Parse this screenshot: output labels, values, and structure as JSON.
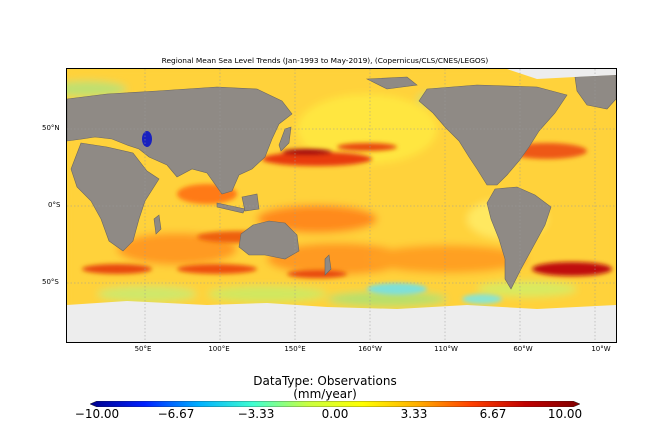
{
  "map": {
    "title": "Regional Mean Sea Level Trends (Jan-1993 to May-2019), (Copernicus/CLS/CNES/LEGOS)",
    "lat_labels": [
      "50°N",
      "0°S",
      "50°S"
    ],
    "lon_labels": [
      "50°E",
      "100°E",
      "150°E",
      "160°W",
      "110°W",
      "60°W",
      "10°W"
    ],
    "colors": {
      "land": "#8f8a85",
      "ice": "#ededed",
      "ocean_base": "#ffd23a",
      "high_trend": "#e83a10",
      "very_high_trend": "#b01010",
      "low_trend": "#7ee0d8"
    }
  },
  "colorbar": {
    "title": "DataType: Observations",
    "unit": "(mm/year)",
    "ticks": [
      "−10.00",
      "−6.67",
      "−3.33",
      "0.00",
      "3.33",
      "6.67",
      "10.00"
    ],
    "range": [
      -10,
      10
    ],
    "stops": [
      "#00008b",
      "#0020ff",
      "#00b0ff",
      "#40ffd0",
      "#c8ff40",
      "#ffff00",
      "#ffb000",
      "#ff4000",
      "#c00000",
      "#800000"
    ]
  }
}
